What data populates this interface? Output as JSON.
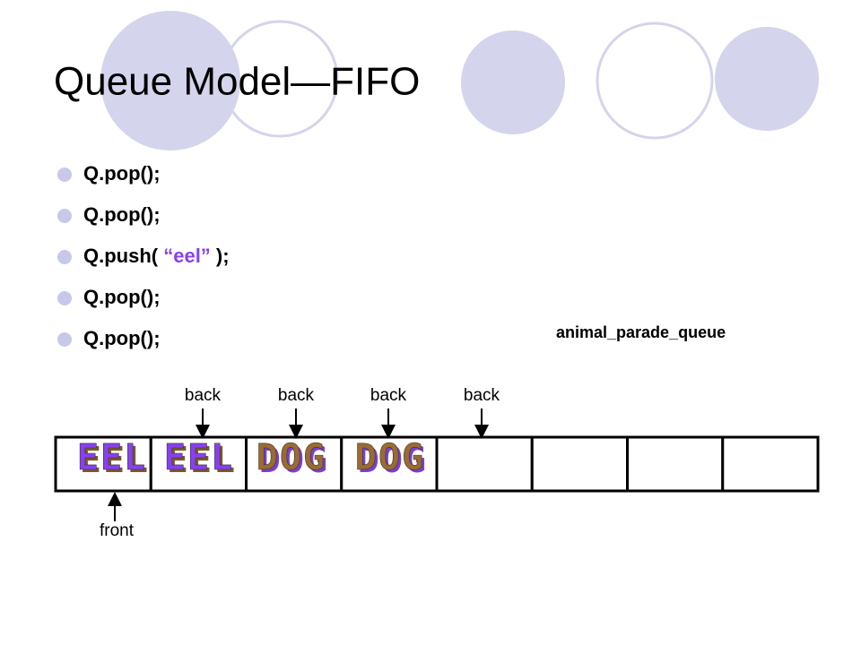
{
  "header": {
    "title": "Queue Model—FIFO"
  },
  "bullets": [
    {
      "parts": [
        "Q.pop();"
      ]
    },
    {
      "parts": [
        "Q.pop();"
      ]
    },
    {
      "parts": [
        "Q.push( ",
        "“eel”",
        " );"
      ]
    },
    {
      "parts": [
        "Q.pop();"
      ]
    },
    {
      "parts": [
        "Q.pop();"
      ]
    }
  ],
  "queue": {
    "name": "animal_parade_queue",
    "cells": [
      "EEL",
      "EEL",
      "DOG",
      "DOG"
    ],
    "back_labels": [
      "back",
      "back",
      "back",
      "back"
    ],
    "front_label": "front"
  }
}
